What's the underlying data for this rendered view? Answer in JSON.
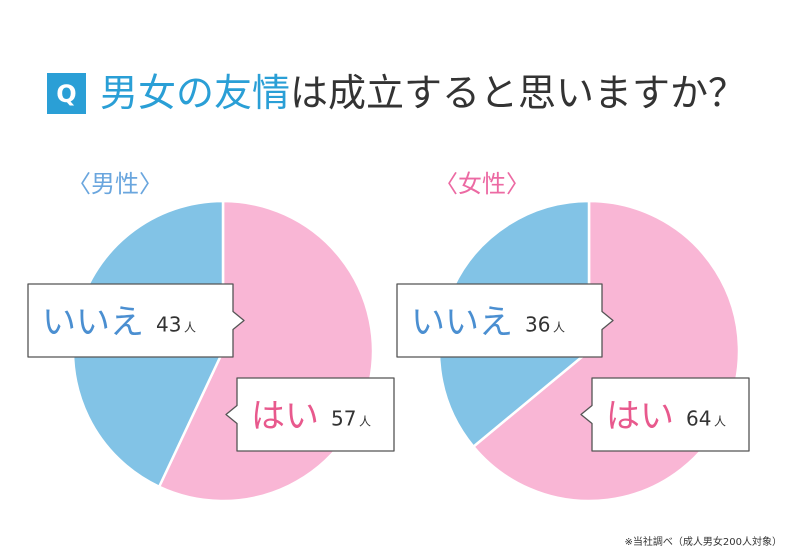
{
  "header": {
    "q_label": "Q",
    "title_highlight": "男女の友情",
    "title_rest": "は成立すると思いますか？"
  },
  "footnote": "※当社調べ（成人男女200人対象）",
  "chart_data": [
    {
      "type": "pie",
      "title": "〈男性〉",
      "slices": [
        {
          "label": "はい",
          "value": 57,
          "unit": "人",
          "color": "#f9b6d5",
          "label_color": "#e8598d"
        },
        {
          "label": "いいえ",
          "value": 43,
          "unit": "人",
          "color": "#82c3e6",
          "label_color": "#4b8fd1"
        }
      ],
      "title_color": "#6aa6de",
      "start": "top, clockwise"
    },
    {
      "type": "pie",
      "title": "〈女性〉",
      "slices": [
        {
          "label": "はい",
          "value": 64,
          "unit": "人",
          "color": "#f9b6d5",
          "label_color": "#e8598d"
        },
        {
          "label": "いいえ",
          "value": 36,
          "unit": "人",
          "color": "#82c3e6",
          "label_color": "#4b8fd1"
        }
      ],
      "title_color": "#ec6aa3",
      "start": "top, clockwise"
    }
  ]
}
